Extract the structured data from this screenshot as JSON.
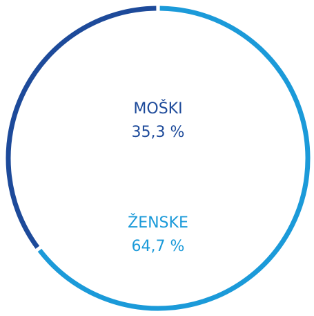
{
  "chart_data": {
    "type": "donut",
    "categories": [
      "MOŠKI",
      "ŽENSKE"
    ],
    "values": [
      35.3,
      64.7
    ],
    "value_labels": [
      "35,3 %",
      "64,7 %"
    ],
    "colors": [
      "#1d4a9a",
      "#1b9ad9"
    ]
  }
}
